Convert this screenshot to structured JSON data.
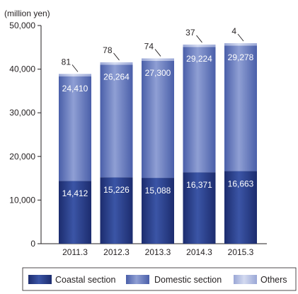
{
  "chart_data": {
    "type": "bar",
    "stacked": true,
    "unit_label": "(million yen)",
    "categories": [
      "2011.3",
      "2012.3",
      "2013.3",
      "2014.3",
      "2015.3"
    ],
    "series": [
      {
        "name": "Coastal section",
        "values": [
          14412,
          15226,
          15088,
          16371,
          16663
        ],
        "labels": [
          "14,412",
          "15,226",
          "15,088",
          "16,371",
          "16,663"
        ],
        "color": "#2a3f8e"
      },
      {
        "name": "Domestic section",
        "values": [
          24410,
          26264,
          27300,
          29224,
          29278
        ],
        "labels": [
          "24,410",
          "26,264",
          "27,300",
          "29,224",
          "29,278"
        ],
        "color": "#5a6fb8"
      },
      {
        "name": "Others",
        "values": [
          81,
          78,
          74,
          37,
          4
        ],
        "labels": [
          "81",
          "78",
          "74",
          "37",
          "4"
        ],
        "color": "#a9b5de"
      }
    ],
    "ylim": [
      0,
      50000
    ],
    "yticks": [
      "0",
      "10,000",
      "20,000",
      "30,000",
      "40,000",
      "50,000"
    ],
    "ytick_values": [
      0,
      10000,
      20000,
      30000,
      40000,
      50000
    ],
    "grid": false,
    "legend": "bottom"
  }
}
